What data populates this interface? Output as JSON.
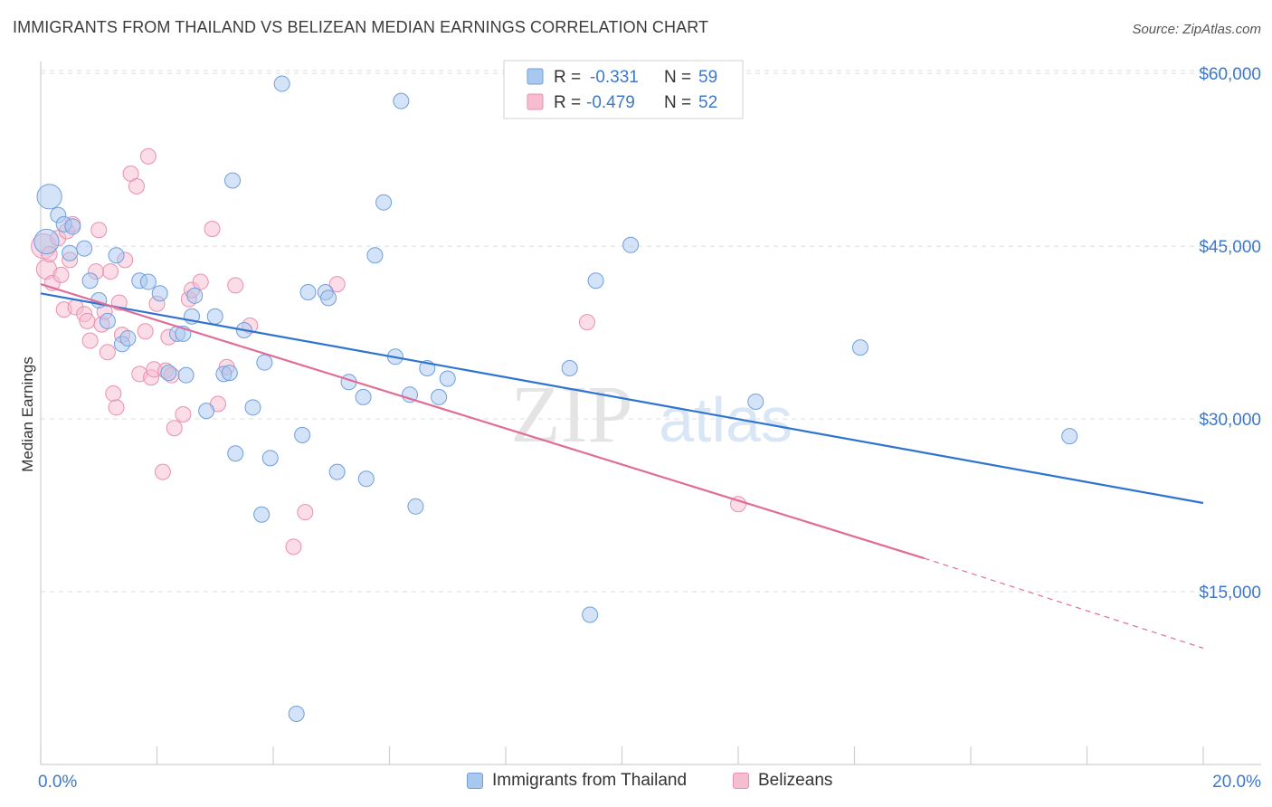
{
  "header": {
    "title": "IMMIGRANTS FROM THAILAND VS BELIZEAN MEDIAN EARNINGS CORRELATION CHART",
    "source": "Source: ZipAtlas.com"
  },
  "watermark": {
    "zip": "ZIP",
    "atlas": "atlas"
  },
  "colors": {
    "blue_fill": "#a9c8f0",
    "blue_stroke": "#6f9fdc",
    "blue_line": "#2f73d0",
    "pink_fill": "#f6bcd0",
    "pink_stroke": "#ea8fb0",
    "pink_line": "#e06d98",
    "axis_text": "#3e78c8",
    "grid": "#dcdcdc"
  },
  "legend_top": [
    {
      "r_label": "R =",
      "r_value": "-0.331",
      "n_label": "N =",
      "n_value": "59"
    },
    {
      "r_label": "R =",
      "r_value": "-0.479",
      "n_label": "N =",
      "n_value": "52"
    }
  ],
  "legend_bottom": [
    "Immigrants from Thailand",
    "Belizeans"
  ],
  "chart_data": {
    "type": "scatter",
    "title": "IMMIGRANTS FROM THAILAND VS BELIZEAN MEDIAN EARNINGS CORRELATION CHART",
    "xlabel": "",
    "ylabel": "Median Earnings",
    "xlim": [
      0,
      20
    ],
    "ylim": [
      0,
      61500
    ],
    "x_tick_labels": [
      "0.0%",
      "20.0%"
    ],
    "y_ticks": [
      15000,
      30000,
      45000,
      60000
    ],
    "y_tick_labels": [
      "$15,000",
      "$30,000",
      "$45,000",
      "$60,000"
    ],
    "grid": true,
    "legend_placement": "top-center",
    "series": [
      {
        "name": "Immigrants from Thailand",
        "r": -0.331,
        "n": 59,
        "trend": {
          "x": [
            0,
            20
          ],
          "y": [
            40900,
            22700
          ]
        },
        "points": [
          [
            0.15,
            49300,
            1.6
          ],
          [
            0.1,
            45400,
            1.6
          ],
          [
            0.3,
            47700,
            1
          ],
          [
            0.4,
            46900,
            1
          ],
          [
            0.55,
            46700,
            1
          ],
          [
            0.5,
            44400,
            1
          ],
          [
            0.75,
            44800,
            1
          ],
          [
            0.85,
            42000,
            1
          ],
          [
            1.3,
            44200,
            1
          ],
          [
            1.0,
            40300,
            1
          ],
          [
            1.15,
            38500,
            1
          ],
          [
            1.4,
            36500,
            1
          ],
          [
            1.5,
            37000,
            1
          ],
          [
            1.7,
            42000,
            1
          ],
          [
            1.85,
            41900,
            1
          ],
          [
            2.05,
            40900,
            1
          ],
          [
            2.2,
            34000,
            1
          ],
          [
            2.35,
            37400,
            1
          ],
          [
            2.45,
            37400,
            1
          ],
          [
            2.6,
            38900,
            1
          ],
          [
            2.65,
            40700,
            1
          ],
          [
            2.85,
            30700,
            1
          ],
          [
            3.0,
            38900,
            1
          ],
          [
            3.15,
            33900,
            1
          ],
          [
            3.25,
            34000,
            1
          ],
          [
            3.35,
            27000,
            1
          ],
          [
            3.5,
            37700,
            1
          ],
          [
            3.65,
            31000,
            1
          ],
          [
            3.8,
            21700,
            1
          ],
          [
            3.85,
            34900,
            1
          ],
          [
            3.95,
            26600,
            1
          ],
          [
            4.15,
            59100,
            1
          ],
          [
            4.4,
            4400,
            1
          ],
          [
            4.5,
            28600,
            1
          ],
          [
            4.6,
            41000,
            1
          ],
          [
            4.9,
            41000,
            1
          ],
          [
            4.95,
            40500,
            1
          ],
          [
            5.1,
            25400,
            1
          ],
          [
            5.3,
            33200,
            1
          ],
          [
            5.55,
            31900,
            1
          ],
          [
            5.6,
            24800,
            1
          ],
          [
            5.75,
            44200,
            1
          ],
          [
            5.9,
            48800,
            1
          ],
          [
            6.1,
            35400,
            1
          ],
          [
            6.2,
            57600,
            1
          ],
          [
            6.35,
            32100,
            1
          ],
          [
            6.45,
            22400,
            1
          ],
          [
            6.65,
            34400,
            1
          ],
          [
            6.85,
            31900,
            1
          ],
          [
            7.0,
            33500,
            1
          ],
          [
            9.1,
            34400,
            1
          ],
          [
            9.45,
            13000,
            1
          ],
          [
            9.55,
            42000,
            1
          ],
          [
            10.15,
            45100,
            1
          ],
          [
            12.3,
            31500,
            1
          ],
          [
            14.1,
            36200,
            1
          ],
          [
            17.7,
            28500,
            1
          ],
          [
            3.3,
            50700,
            1
          ],
          [
            2.5,
            33800,
            1
          ]
        ]
      },
      {
        "name": "Belizeans",
        "r": -0.479,
        "n": 52,
        "trend": {
          "x": [
            0,
            15.2
          ],
          "y": [
            41700,
            17900
          ]
        },
        "trend_dashed": {
          "x": [
            15.2,
            20
          ],
          "y": [
            17900,
            10100
          ]
        },
        "points": [
          [
            0.05,
            45000,
            1.6
          ],
          [
            0.1,
            43000,
            1.3
          ],
          [
            0.15,
            44300,
            1
          ],
          [
            0.2,
            41800,
            1
          ],
          [
            0.3,
            45700,
            1
          ],
          [
            0.35,
            42500,
            1
          ],
          [
            0.4,
            39500,
            1
          ],
          [
            0.45,
            46300,
            1
          ],
          [
            0.5,
            43800,
            1
          ],
          [
            0.55,
            46900,
            1
          ],
          [
            0.6,
            39700,
            1
          ],
          [
            0.75,
            39100,
            1
          ],
          [
            0.8,
            38500,
            1
          ],
          [
            0.85,
            36800,
            1
          ],
          [
            0.95,
            42800,
            1
          ],
          [
            1.0,
            46400,
            1
          ],
          [
            1.05,
            38200,
            1
          ],
          [
            1.1,
            39300,
            1
          ],
          [
            1.15,
            35800,
            1
          ],
          [
            1.2,
            42800,
            1
          ],
          [
            1.25,
            32200,
            1
          ],
          [
            1.3,
            31000,
            1
          ],
          [
            1.35,
            40100,
            1
          ],
          [
            1.4,
            37300,
            1
          ],
          [
            1.45,
            43800,
            1
          ],
          [
            1.55,
            51300,
            1
          ],
          [
            1.65,
            50200,
            1
          ],
          [
            1.7,
            33900,
            1
          ],
          [
            1.8,
            37600,
            1
          ],
          [
            1.85,
            52800,
            1
          ],
          [
            1.9,
            33600,
            1
          ],
          [
            1.95,
            34300,
            1
          ],
          [
            2.0,
            40000,
            1
          ],
          [
            2.1,
            25400,
            1
          ],
          [
            2.15,
            34200,
            1
          ],
          [
            2.2,
            37100,
            1
          ],
          [
            2.25,
            33800,
            1
          ],
          [
            2.3,
            29200,
            1
          ],
          [
            2.45,
            30400,
            1
          ],
          [
            2.55,
            40400,
            1
          ],
          [
            2.6,
            41200,
            1
          ],
          [
            2.75,
            41900,
            1
          ],
          [
            2.95,
            46500,
            1
          ],
          [
            3.05,
            31300,
            1
          ],
          [
            3.2,
            34500,
            1
          ],
          [
            3.35,
            41600,
            1
          ],
          [
            3.6,
            38100,
            1
          ],
          [
            4.35,
            18900,
            1
          ],
          [
            4.55,
            21900,
            1
          ],
          [
            5.1,
            41700,
            1
          ],
          [
            9.4,
            38400,
            1
          ],
          [
            12.0,
            22600,
            1
          ]
        ]
      }
    ]
  }
}
